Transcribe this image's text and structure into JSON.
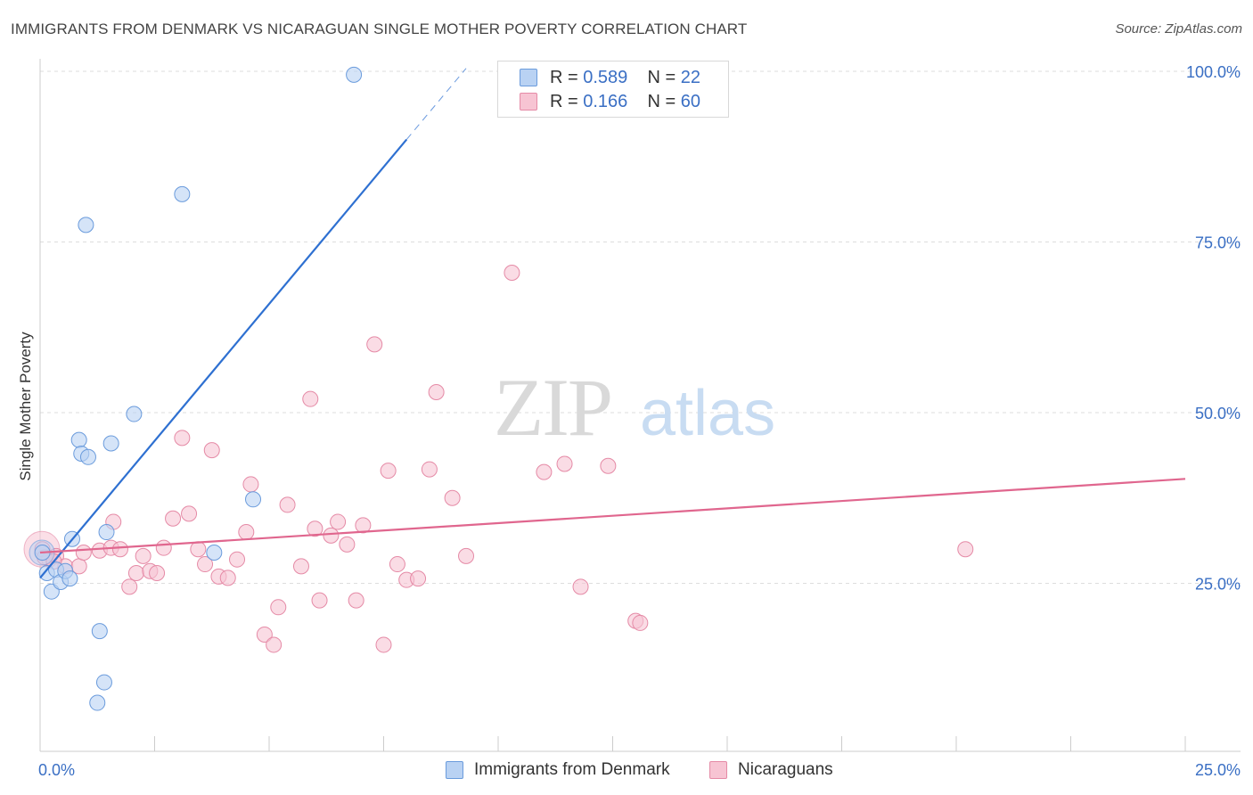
{
  "title": "IMMIGRANTS FROM DENMARK VS NICARAGUAN SINGLE MOTHER POVERTY CORRELATION CHART",
  "source": "Source: ZipAtlas.com",
  "watermark": {
    "zip": "ZIP",
    "atlas": "atlas"
  },
  "legend_top": [
    {
      "r_label": "R =",
      "r_value": "0.589",
      "n_label": "N =",
      "n_value": "22"
    },
    {
      "r_label": "R =",
      "r_value": "0.166",
      "n_label": "N =",
      "n_value": "60"
    }
  ],
  "legend_bottom": [
    "Immigrants from Denmark",
    "Nicaraguans"
  ],
  "colors": {
    "blue_fill": "#b9d2f3",
    "blue_stroke": "#6a9bdc",
    "blue_line": "#2e70d1",
    "pink_fill": "#f7c4d3",
    "pink_stroke": "#e58aa6",
    "pink_line": "#e0668e",
    "axis_label": "#3a6fc4"
  },
  "chart_data": {
    "type": "scatter",
    "title": "IMMIGRANTS FROM DENMARK VS NICARAGUAN SINGLE MOTHER POVERTY CORRELATION CHART",
    "xlabel": "",
    "ylabel": "Single Mother Poverty",
    "xlim": [
      0,
      25
    ],
    "ylim": [
      0,
      102
    ],
    "x_tick_labels": [
      {
        "value": 0,
        "label": "0.0%"
      },
      {
        "value": 25,
        "label": "25.0%"
      }
    ],
    "y_tick_labels": [
      {
        "value": 25,
        "label": "25.0%"
      },
      {
        "value": 50,
        "label": "50.0%"
      },
      {
        "value": 75,
        "label": "75.0%"
      },
      {
        "value": 100,
        "label": "100.0%"
      }
    ],
    "series": [
      {
        "name": "Immigrants from Denmark",
        "r": 0.589,
        "n": 22,
        "trend": {
          "x0": 0.0,
          "y0": 25.8,
          "x1": 8.0,
          "y1": 90.0,
          "dash_to_x": 9.3
        },
        "points": [
          [
            0.05,
            29.5
          ],
          [
            0.15,
            26.5
          ],
          [
            0.25,
            23.8
          ],
          [
            0.35,
            27.0
          ],
          [
            0.45,
            25.2
          ],
          [
            0.55,
            26.8
          ],
          [
            0.65,
            25.7
          ],
          [
            0.7,
            31.5
          ],
          [
            0.85,
            46.0
          ],
          [
            0.9,
            44.0
          ],
          [
            1.0,
            77.5
          ],
          [
            1.05,
            43.5
          ],
          [
            1.3,
            18.0
          ],
          [
            1.4,
            10.5
          ],
          [
            1.25,
            7.5
          ],
          [
            1.45,
            32.5
          ],
          [
            1.55,
            45.5
          ],
          [
            2.05,
            49.8
          ],
          [
            3.1,
            82.0
          ],
          [
            3.8,
            29.5
          ],
          [
            4.65,
            37.3
          ],
          [
            6.85,
            99.5
          ]
        ]
      },
      {
        "name": "Nicaraguans",
        "r": 0.166,
        "n": 60,
        "trend": {
          "x0": 0.0,
          "y0": 29.5,
          "x1": 25.0,
          "y1": 40.3
        },
        "points": [
          [
            0.05,
            30.0
          ],
          [
            0.2,
            28.5
          ],
          [
            0.35,
            29.0
          ],
          [
            0.55,
            27.5
          ],
          [
            0.85,
            27.5
          ],
          [
            0.95,
            29.5
          ],
          [
            1.3,
            29.8
          ],
          [
            1.55,
            30.2
          ],
          [
            1.6,
            34.0
          ],
          [
            1.75,
            30.0
          ],
          [
            1.95,
            24.5
          ],
          [
            2.1,
            26.5
          ],
          [
            2.25,
            29.0
          ],
          [
            2.4,
            26.8
          ],
          [
            2.55,
            26.5
          ],
          [
            2.7,
            30.2
          ],
          [
            2.9,
            34.5
          ],
          [
            3.1,
            46.3
          ],
          [
            3.25,
            35.2
          ],
          [
            3.45,
            30.0
          ],
          [
            3.6,
            27.8
          ],
          [
            3.75,
            44.5
          ],
          [
            3.9,
            26.0
          ],
          [
            4.1,
            25.8
          ],
          [
            4.3,
            28.5
          ],
          [
            4.5,
            32.5
          ],
          [
            4.6,
            39.5
          ],
          [
            4.9,
            17.5
          ],
          [
            5.1,
            16.0
          ],
          [
            5.2,
            21.5
          ],
          [
            5.4,
            36.5
          ],
          [
            5.7,
            27.5
          ],
          [
            5.9,
            52.0
          ],
          [
            6.0,
            33.0
          ],
          [
            6.1,
            22.5
          ],
          [
            6.35,
            32.0
          ],
          [
            6.5,
            34.0
          ],
          [
            6.7,
            30.7
          ],
          [
            6.9,
            22.5
          ],
          [
            7.05,
            33.5
          ],
          [
            7.3,
            60.0
          ],
          [
            7.5,
            16.0
          ],
          [
            7.6,
            41.5
          ],
          [
            7.8,
            27.8
          ],
          [
            8.0,
            25.5
          ],
          [
            8.25,
            25.7
          ],
          [
            8.5,
            41.7
          ],
          [
            8.65,
            53.0
          ],
          [
            9.0,
            37.5
          ],
          [
            9.3,
            29.0
          ],
          [
            10.3,
            70.5
          ],
          [
            11.0,
            41.3
          ],
          [
            11.45,
            42.5
          ],
          [
            11.8,
            24.5
          ],
          [
            12.4,
            42.2
          ],
          [
            13.0,
            19.5
          ],
          [
            13.1,
            19.2
          ],
          [
            20.2,
            30.0
          ],
          [
            0.1,
            28.8
          ],
          [
            0.3,
            28.2
          ]
        ]
      }
    ]
  }
}
